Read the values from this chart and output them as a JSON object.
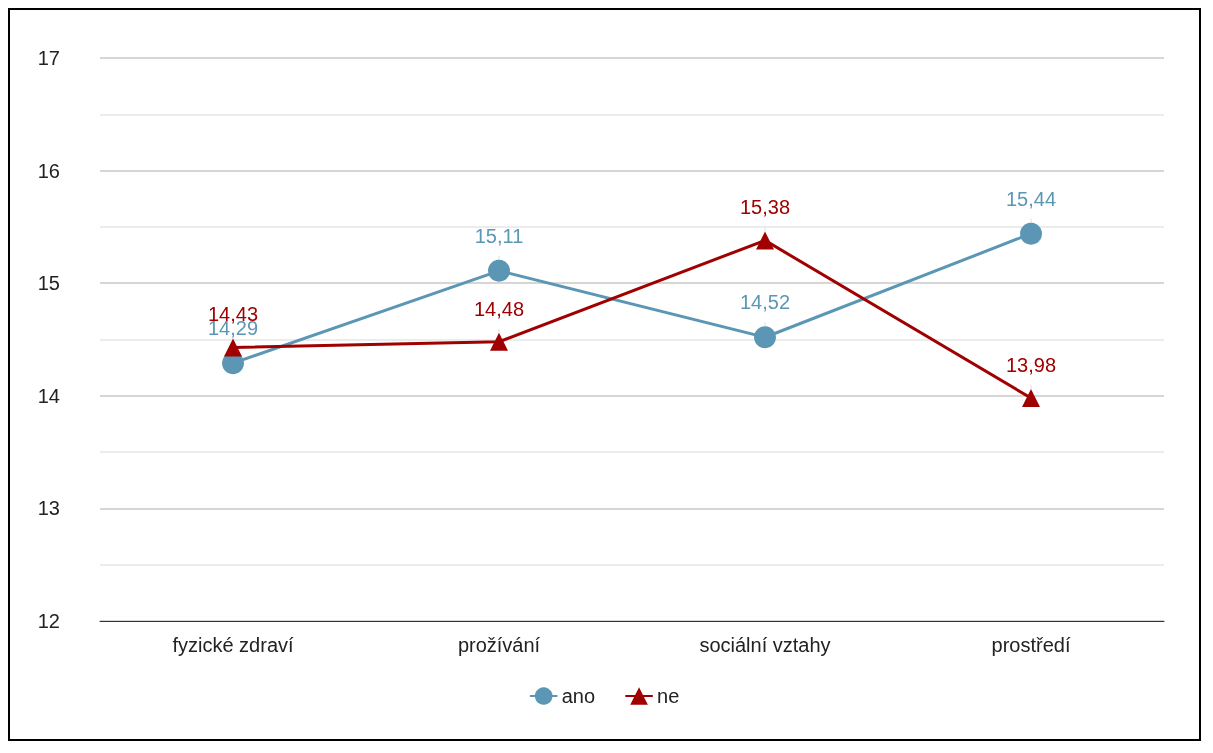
{
  "chart_data": {
    "type": "line",
    "categories": [
      "fyzické zdraví",
      "prožívání",
      "sociální vztahy",
      "prostředí"
    ],
    "series": [
      {
        "name": "ano",
        "color": "#5b97b5",
        "marker": "circle",
        "values": [
          14.29,
          15.11,
          14.52,
          15.44
        ],
        "value_labels": [
          "14,29",
          "15,11",
          "14,52",
          "15,44"
        ]
      },
      {
        "name": "ne",
        "color": "#a00000",
        "marker": "triangle",
        "values": [
          14.43,
          14.48,
          15.38,
          13.98
        ],
        "value_labels": [
          "14,43",
          "14,48",
          "15,38",
          "13,98"
        ]
      }
    ],
    "ylim": [
      12,
      17
    ],
    "yticks": [
      12,
      13,
      14,
      15,
      16,
      17
    ],
    "grid": "y",
    "legend": "bottom",
    "line_style": "solid"
  }
}
